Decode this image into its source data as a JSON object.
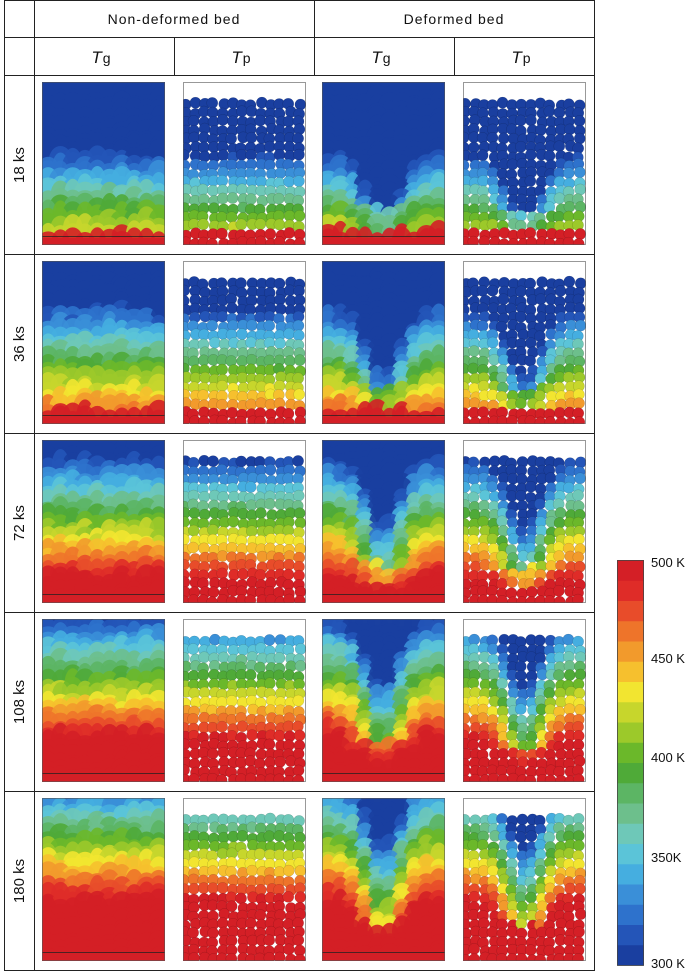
{
  "header": {
    "group_labels": [
      "Non-deformed bed",
      "Deformed bed"
    ],
    "column_labels": [
      {
        "symbol": "T",
        "sub": "g"
      },
      {
        "symbol": "T",
        "sub": "p"
      },
      {
        "symbol": "T",
        "sub": "g"
      },
      {
        "symbol": "T",
        "sub": "p"
      }
    ]
  },
  "rows": [
    {
      "label": "18 ks",
      "level": 0.08
    },
    {
      "label": "36 ks",
      "level": 0.28
    },
    {
      "label": "72 ks",
      "level": 0.52
    },
    {
      "label": "108 ks",
      "level": 0.68
    },
    {
      "label": "180 ks",
      "level": 0.82
    }
  ],
  "colorbar": {
    "min_label": "300 K",
    "max_label": "500 K",
    "ticks": [
      "500 K",
      "450 K",
      "400 K",
      "350K",
      "300 K"
    ],
    "colors": [
      "#1a3fa0",
      "#2455b8",
      "#2e72cc",
      "#3a8fd8",
      "#45aee0",
      "#5bc4d8",
      "#6ec8b8",
      "#6dbf8c",
      "#5cb564",
      "#4faa38",
      "#6bb82a",
      "#9cc92a",
      "#c7d62c",
      "#f2e530",
      "#f6c02e",
      "#f29a2c",
      "#ee742a",
      "#e84c2a",
      "#df2c28",
      "#d41f26"
    ]
  }
}
